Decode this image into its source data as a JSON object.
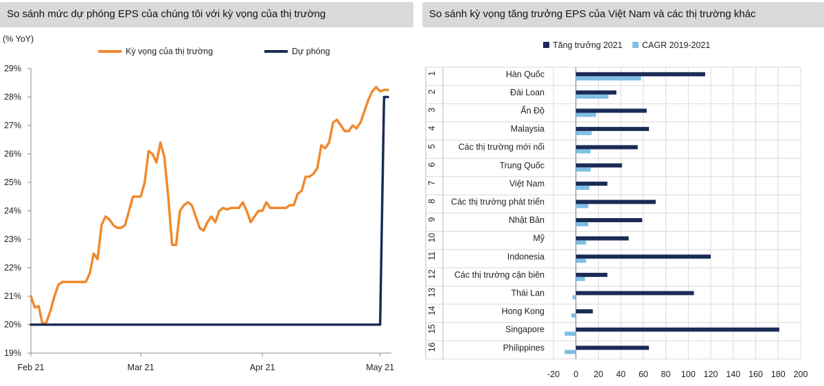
{
  "left_panel": {
    "title": "So sánh mức dự phóng EPS của chúng tôi với kỳ vọng của thị trường"
  },
  "right_panel": {
    "title": "So sánh kỳ vọng tăng trưởng EPS của Việt Nam và các thị trường khác"
  },
  "colors": {
    "orange": "#f0892d",
    "navy": "#1a2b55",
    "lightblue": "#7fbfe3",
    "grid": "#d9d9d9"
  },
  "chart_data": [
    {
      "type": "line",
      "unit_label": "(% YoY)",
      "ylim": [
        19,
        29
      ],
      "yticks": [
        "19%",
        "20%",
        "21%",
        "22%",
        "23%",
        "24%",
        "25%",
        "26%",
        "27%",
        "28%",
        "29%"
      ],
      "x_range_days": [
        0,
        91
      ],
      "xticks": [
        {
          "label": "Feb 21",
          "day": 0
        },
        {
          "label": "Mar 21",
          "day": 28
        },
        {
          "label": "Apr 21",
          "day": 59
        },
        {
          "label": "May 21",
          "day": 89
        }
      ],
      "series": [
        {
          "name": "Kỳ vọng của thị trường",
          "color": "#f0892d",
          "points": [
            [
              0,
              21.0
            ],
            [
              1,
              20.6
            ],
            [
              2,
              20.65
            ],
            [
              3,
              20.0
            ],
            [
              4,
              20.1
            ],
            [
              5,
              20.5
            ],
            [
              6,
              21.0
            ],
            [
              7,
              21.4
            ],
            [
              8,
              21.5
            ],
            [
              10,
              21.5
            ],
            [
              12,
              21.5
            ],
            [
              14,
              21.5
            ],
            [
              15,
              21.8
            ],
            [
              16,
              22.5
            ],
            [
              17,
              22.3
            ],
            [
              18,
              23.5
            ],
            [
              19,
              23.8
            ],
            [
              20,
              23.7
            ],
            [
              21,
              23.5
            ],
            [
              22,
              23.4
            ],
            [
              23,
              23.4
            ],
            [
              24,
              23.5
            ],
            [
              25,
              24.0
            ],
            [
              26,
              24.5
            ],
            [
              27,
              24.5
            ],
            [
              28,
              24.5
            ],
            [
              29,
              25.0
            ],
            [
              30,
              26.1
            ],
            [
              31,
              26.0
            ],
            [
              32,
              25.7
            ],
            [
              33,
              26.4
            ],
            [
              34,
              25.9
            ],
            [
              35,
              24.5
            ],
            [
              36,
              22.8
            ],
            [
              37,
              22.8
            ],
            [
              38,
              24.0
            ],
            [
              39,
              24.2
            ],
            [
              40,
              24.3
            ],
            [
              41,
              24.2
            ],
            [
              42,
              23.8
            ],
            [
              43,
              23.4
            ],
            [
              44,
              23.3
            ],
            [
              45,
              23.6
            ],
            [
              46,
              23.8
            ],
            [
              47,
              23.6
            ],
            [
              48,
              24.0
            ],
            [
              49,
              24.1
            ],
            [
              50,
              24.05
            ],
            [
              51,
              24.1
            ],
            [
              52,
              24.1
            ],
            [
              53,
              24.1
            ],
            [
              54,
              24.3
            ],
            [
              55,
              24.0
            ],
            [
              56,
              23.6
            ],
            [
              57,
              23.8
            ],
            [
              58,
              24.0
            ],
            [
              59,
              24.0
            ],
            [
              60,
              24.3
            ],
            [
              61,
              24.1
            ],
            [
              62,
              24.1
            ],
            [
              63,
              24.1
            ],
            [
              64,
              24.1
            ],
            [
              65,
              24.1
            ],
            [
              66,
              24.2
            ],
            [
              67,
              24.2
            ],
            [
              68,
              24.6
            ],
            [
              69,
              24.7
            ],
            [
              70,
              25.2
            ],
            [
              71,
              25.2
            ],
            [
              72,
              25.3
            ],
            [
              73,
              25.5
            ],
            [
              74,
              26.3
            ],
            [
              75,
              26.2
            ],
            [
              76,
              26.4
            ],
            [
              77,
              27.1
            ],
            [
              78,
              27.2
            ],
            [
              79,
              27.0
            ],
            [
              80,
              26.8
            ],
            [
              81,
              26.8
            ],
            [
              82,
              27.0
            ],
            [
              83,
              26.9
            ],
            [
              84,
              27.1
            ],
            [
              85,
              27.5
            ],
            [
              86,
              27.9
            ],
            [
              87,
              28.2
            ],
            [
              88,
              28.35
            ],
            [
              89,
              28.2
            ],
            [
              90,
              28.25
            ],
            [
              91,
              28.25
            ]
          ]
        },
        {
          "name": "Dự phóng",
          "color": "#1a2b55",
          "points": [
            [
              0,
              20.0
            ],
            [
              89,
              20.0
            ],
            [
              90,
              28.0
            ],
            [
              91,
              28.0
            ]
          ]
        }
      ]
    },
    {
      "type": "bar",
      "orientation": "horizontal",
      "xlim": [
        -20,
        200
      ],
      "xticks": [
        "-20",
        "0",
        "20",
        "40",
        "60",
        "80",
        "100",
        "120",
        "140",
        "160",
        "180",
        "200"
      ],
      "categories": [
        "Hàn Quốc",
        "Đài Loan",
        "Ấn Độ",
        "Malaysia",
        "Các thị trường mới nổi",
        "Trung Quốc",
        "Việt Nam",
        "Các thị trường phát triển",
        "Nhật Bản",
        "Mỹ",
        "Indonesia",
        "Các thị trường cận biên",
        "Thái Lan",
        "Hong Kong",
        "Singapore",
        "Philippines"
      ],
      "ranks": [
        "1",
        "2",
        "3",
        "4",
        "5",
        "6",
        "7",
        "8",
        "9",
        "10",
        "11",
        "12",
        "13",
        "14",
        "15",
        "16"
      ],
      "series": [
        {
          "name": "Tăng trưởng 2021",
          "color": "#1a2b55",
          "values": [
            115,
            36,
            63,
            65,
            55,
            41,
            28,
            71,
            59,
            47,
            120,
            28,
            105,
            15,
            181,
            65
          ]
        },
        {
          "name": "CAGR 2019-2021",
          "color": "#7fbfe3",
          "values": [
            58,
            29,
            18,
            14,
            13,
            13,
            12,
            11,
            11,
            9,
            9,
            8,
            -3,
            -4,
            -10,
            -10
          ]
        }
      ]
    }
  ]
}
